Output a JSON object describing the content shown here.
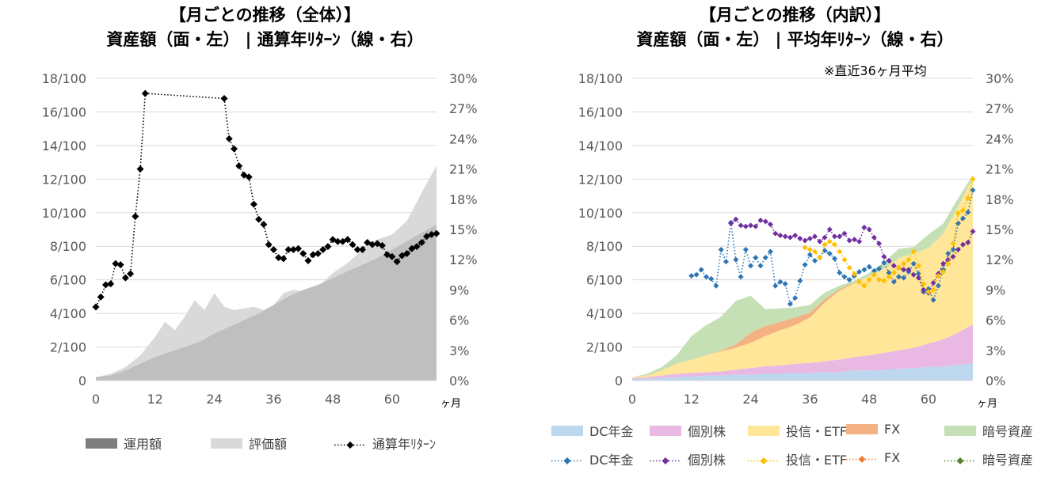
{
  "left_chart": {
    "title_line1": "【月ごとの推移（全体）】",
    "title_line2": "資産額（面・左） | 通算年ﾘﾀｰﾝ（線・右）",
    "x_unit": "ヶ月",
    "y_left_ticks": [
      "0",
      "2/100",
      "4/100",
      "6/100",
      "8/100",
      "10/100",
      "12/100",
      "14/100",
      "16/100",
      "18/100"
    ],
    "y_right_ticks": [
      "0%",
      "3%",
      "6%",
      "9%",
      "12%",
      "15%",
      "18%",
      "21%",
      "24%",
      "27%",
      "30%"
    ],
    "x_ticks": [
      "0",
      "12",
      "24",
      "36",
      "48",
      "60"
    ],
    "legend": [
      "運用額",
      "評価額",
      "通算年ﾘﾀｰﾝ"
    ],
    "colors": {
      "運用額": "#7f7f7f",
      "評価額": "#d9d9d9",
      "通算年ﾘﾀｰﾝ": "#000000"
    }
  },
  "right_chart": {
    "title_line1": "【月ごとの推移（内訳）】",
    "title_line2": "資産額（面・左） | 平均年ﾘﾀｰﾝ（線・右）",
    "note": "※直近36ヶ月平均",
    "x_unit": "ヶ月",
    "y_left_ticks": [
      "0",
      "2/100",
      "4/100",
      "6/100",
      "8/100",
      "10/100",
      "12/100",
      "14/100",
      "16/100",
      "18/100"
    ],
    "y_right_ticks": [
      "0%",
      "3%",
      "6%",
      "9%",
      "12%",
      "15%",
      "18%",
      "21%",
      "24%",
      "27%",
      "30%"
    ],
    "x_ticks": [
      "0",
      "12",
      "24",
      "36",
      "48",
      "60"
    ],
    "legend_area": [
      "DC年金",
      "個別株",
      "投信・ETF",
      "FX",
      "暗号資産"
    ],
    "legend_line": [
      "DC年金",
      "個別株",
      "投信・ETF",
      "FX",
      "暗号資産"
    ],
    "colors": {
      "DC年金": "#bdd7ee",
      "個別株": "#e9b8e3",
      "投信・ETF": "#ffe699",
      "FX": "#f4b183",
      "暗号資産": "#c5e0b4",
      "DC年金_line": "#2e75b6",
      "個別株_line": "#7030a0",
      "投信・ETF_line": "#ffc000",
      "FX_line": "#ed7d31",
      "暗号資産_line": "#548235"
    }
  },
  "chart_data": [
    {
      "type": "area",
      "title": "【月ごとの推移（全体）】 資産額（面・左） | 通算年ﾘﾀｰﾝ（線・右）",
      "xlabel": "ヶ月",
      "xlim": [
        0,
        69
      ],
      "ylim_left": [
        0,
        18
      ],
      "ylim_right": [
        0,
        30
      ],
      "series": [
        {
          "name": "運用額",
          "axis": "left",
          "kind": "area",
          "x": [
            0,
            3,
            6,
            9,
            12,
            15,
            18,
            21,
            24,
            27,
            30,
            33,
            36,
            39,
            42,
            45,
            48,
            51,
            54,
            57,
            60,
            63,
            66,
            69
          ],
          "values": [
            0.2,
            0.3,
            0.6,
            1.0,
            1.4,
            1.7,
            2.0,
            2.3,
            2.8,
            3.2,
            3.6,
            4.0,
            4.5,
            5.0,
            5.4,
            5.7,
            6.1,
            6.5,
            6.9,
            7.3,
            7.8,
            8.3,
            8.8,
            9.3
          ]
        },
        {
          "name": "評価額",
          "axis": "left",
          "kind": "area",
          "x": [
            0,
            3,
            6,
            9,
            12,
            14,
            16,
            18,
            20,
            22,
            24,
            26,
            28,
            30,
            32,
            34,
            36,
            38,
            40,
            42,
            45,
            48,
            51,
            54,
            57,
            60,
            63,
            66,
            69
          ],
          "values": [
            0.2,
            0.4,
            0.8,
            1.5,
            2.6,
            3.5,
            3.0,
            3.8,
            4.8,
            4.2,
            5.2,
            4.4,
            4.2,
            4.3,
            4.4,
            4.2,
            4.5,
            5.2,
            5.4,
            5.3,
            5.6,
            6.4,
            7.0,
            7.8,
            8.4,
            8.7,
            9.5,
            11.2,
            12.8
          ]
        },
        {
          "name": "通算年ﾘﾀｰﾝ",
          "axis": "right",
          "kind": "line",
          "x": [
            0,
            1,
            2,
            3,
            4,
            5,
            6,
            7,
            8,
            9,
            10,
            26,
            27,
            28,
            29,
            30,
            31,
            32,
            33,
            34,
            35,
            36,
            37,
            38,
            39,
            40,
            41,
            42,
            43,
            44,
            45,
            46,
            47,
            48,
            49,
            50,
            51,
            52,
            53,
            54,
            55,
            56,
            57,
            58,
            59,
            60,
            61,
            62,
            63,
            64,
            65,
            66,
            67,
            68,
            69
          ],
          "values": [
            7.3,
            8.3,
            9.5,
            9.6,
            11.6,
            11.5,
            10.2,
            10.6,
            16.3,
            21.0,
            28.5,
            28.0,
            24.0,
            23.0,
            21.3,
            20.4,
            20.2,
            17.5,
            16.0,
            15.5,
            13.5,
            13.0,
            12.2,
            12.1,
            13.0,
            13.0,
            13.1,
            12.6,
            11.9,
            12.5,
            12.6,
            13.0,
            13.3,
            14.0,
            13.8,
            13.8,
            14.0,
            13.5,
            13.0,
            13.0,
            13.7,
            13.5,
            13.6,
            13.4,
            12.5,
            12.3,
            11.8,
            12.4,
            12.6,
            13.1,
            13.3,
            13.7,
            14.3,
            14.5,
            14.6
          ]
        }
      ]
    },
    {
      "type": "area",
      "title": "【月ごとの推移（内訳）】 資産額（面・左） | 平均年ﾘﾀｰﾝ（線・右）",
      "xlabel": "ヶ月",
      "xlim": [
        0,
        69
      ],
      "ylim_left": [
        0,
        18
      ],
      "ylim_right": [
        0,
        30
      ],
      "stacked": true,
      "x": [
        0,
        3,
        6,
        9,
        12,
        15,
        18,
        21,
        24,
        27,
        30,
        33,
        36,
        39,
        42,
        45,
        48,
        51,
        54,
        57,
        60,
        63,
        66,
        69
      ],
      "series": [
        {
          "name": "DC年金",
          "axis": "left",
          "kind": "area",
          "values": [
            0.1,
            0.1,
            0.15,
            0.2,
            0.25,
            0.3,
            0.3,
            0.35,
            0.35,
            0.4,
            0.4,
            0.45,
            0.45,
            0.5,
            0.5,
            0.6,
            0.6,
            0.65,
            0.7,
            0.75,
            0.8,
            0.85,
            0.95,
            1.05
          ]
        },
        {
          "name": "個別株",
          "axis": "left",
          "kind": "area",
          "values": [
            0.05,
            0.1,
            0.15,
            0.2,
            0.2,
            0.2,
            0.25,
            0.3,
            0.4,
            0.45,
            0.5,
            0.55,
            0.6,
            0.65,
            0.75,
            0.8,
            0.9,
            1.0,
            1.1,
            1.2,
            1.4,
            1.6,
            1.9,
            2.3
          ]
        },
        {
          "name": "投信・ETF",
          "axis": "left",
          "kind": "area",
          "values": [
            0.05,
            0.1,
            0.3,
            0.6,
            0.8,
            1.0,
            1.2,
            1.3,
            1.5,
            1.8,
            2.1,
            2.3,
            2.7,
            3.5,
            4.1,
            4.4,
            4.7,
            5.0,
            5.5,
            5.6,
            5.7,
            6.3,
            7.5,
            8.7
          ]
        },
        {
          "name": "FX",
          "axis": "left",
          "kind": "area",
          "values": [
            0,
            0,
            0,
            0,
            0,
            0,
            0.05,
            0.2,
            0.6,
            0.6,
            0.5,
            0.45,
            0.3,
            0.2,
            0.1,
            0.05,
            0,
            0,
            0,
            0,
            0,
            0,
            0,
            0
          ]
        },
        {
          "name": "暗号資産",
          "axis": "left",
          "kind": "area",
          "values": [
            0.0,
            0.1,
            0.2,
            0.5,
            1.4,
            1.8,
            2.0,
            2.6,
            2.2,
            1.0,
            0.8,
            0.6,
            0.45,
            0.4,
            0.2,
            0.1,
            0.2,
            0.4,
            0.55,
            0.4,
            0.8,
            0.6,
            0.5,
            0.2
          ]
        },
        {
          "name": "DC年金",
          "axis": "right",
          "kind": "line",
          "x": [
            12,
            13,
            14,
            15,
            16,
            17,
            18,
            19,
            20,
            21,
            22,
            23,
            24,
            25,
            26,
            27,
            28,
            29,
            30,
            31,
            32,
            33,
            34,
            35,
            36,
            37,
            38,
            39,
            40,
            41,
            42,
            43,
            44,
            45,
            46,
            47,
            48,
            49,
            50,
            51,
            52,
            53,
            54,
            55,
            56,
            57,
            58,
            59,
            60,
            61,
            62,
            63,
            64,
            65,
            66,
            67,
            68,
            69
          ],
          "values": [
            10.4,
            10.5,
            11.0,
            10.3,
            10.1,
            9.4,
            13.0,
            11.8,
            15.7,
            12.0,
            10.3,
            13.0,
            11.4,
            12.2,
            11.4,
            12.2,
            12.8,
            9.4,
            9.8,
            9.6,
            7.6,
            8.2,
            9.9,
            11.5,
            12.5,
            11.9,
            12.2,
            12.9,
            12.6,
            12.1,
            10.7,
            10.3,
            10.0,
            10.4,
            10.8,
            11.0,
            11.3,
            10.9,
            11.1,
            11.7,
            10.7,
            9.8,
            10.3,
            10.2,
            10.8,
            11.6,
            10.6,
            8.8,
            9.1,
            8.0,
            9.4,
            11.0,
            12.6,
            13.0,
            15.6,
            16.1,
            16.7,
            18.9
          ]
        },
        {
          "name": "個別株",
          "axis": "right",
          "kind": "line",
          "x": [
            20,
            21,
            22,
            23,
            24,
            25,
            26,
            27,
            28,
            29,
            30,
            31,
            32,
            33,
            34,
            35,
            36,
            37,
            38,
            39,
            40,
            41,
            42,
            43,
            44,
            45,
            46,
            47,
            48,
            49,
            50,
            51,
            52,
            53,
            54,
            55,
            56,
            57,
            58,
            59,
            60,
            61,
            62,
            63,
            64,
            65,
            66,
            67,
            68,
            69
          ],
          "values": [
            15.6,
            16.0,
            15.4,
            15.3,
            15.4,
            15.3,
            15.9,
            15.8,
            15.5,
            14.6,
            14.4,
            14.3,
            14.2,
            14.4,
            14.1,
            13.9,
            14.1,
            14.3,
            13.8,
            14.2,
            15.0,
            14.3,
            14.3,
            14.6,
            13.9,
            14.0,
            13.8,
            15.2,
            15.0,
            14.2,
            13.6,
            12.3,
            11.9,
            11.4,
            11.2,
            11.0,
            11.0,
            10.5,
            10.2,
            9.0,
            8.7,
            9.7,
            10.6,
            11.6,
            12.0,
            12.3,
            13.0,
            13.5,
            13.7,
            14.8
          ]
        },
        {
          "name": "投信・ETF",
          "axis": "right",
          "kind": "line",
          "x": [
            35,
            36,
            37,
            38,
            39,
            40,
            41,
            42,
            43,
            44,
            45,
            46,
            47,
            48,
            49,
            50,
            51,
            52,
            53,
            54,
            55,
            56,
            57,
            58,
            59,
            60,
            61,
            62,
            63,
            64,
            65,
            66,
            67,
            68,
            69
          ],
          "values": [
            13.2,
            13.0,
            12.8,
            12.2,
            13.5,
            13.8,
            13.5,
            12.8,
            12.0,
            11.2,
            10.6,
            9.8,
            9.4,
            10.0,
            10.5,
            10.0,
            9.9,
            10.3,
            10.7,
            11.2,
            11.6,
            12.0,
            12.8,
            11.4,
            9.6,
            8.8,
            9.0,
            10.4,
            10.8,
            11.6,
            13.6,
            16.6,
            16.9,
            18.1,
            20.0
          ]
        },
        {
          "name": "FX",
          "axis": "right",
          "kind": "line",
          "x": [],
          "values": []
        },
        {
          "name": "暗号資産",
          "axis": "right",
          "kind": "line",
          "x": [],
          "values": []
        }
      ],
      "legend_position": "bottom"
    }
  ]
}
